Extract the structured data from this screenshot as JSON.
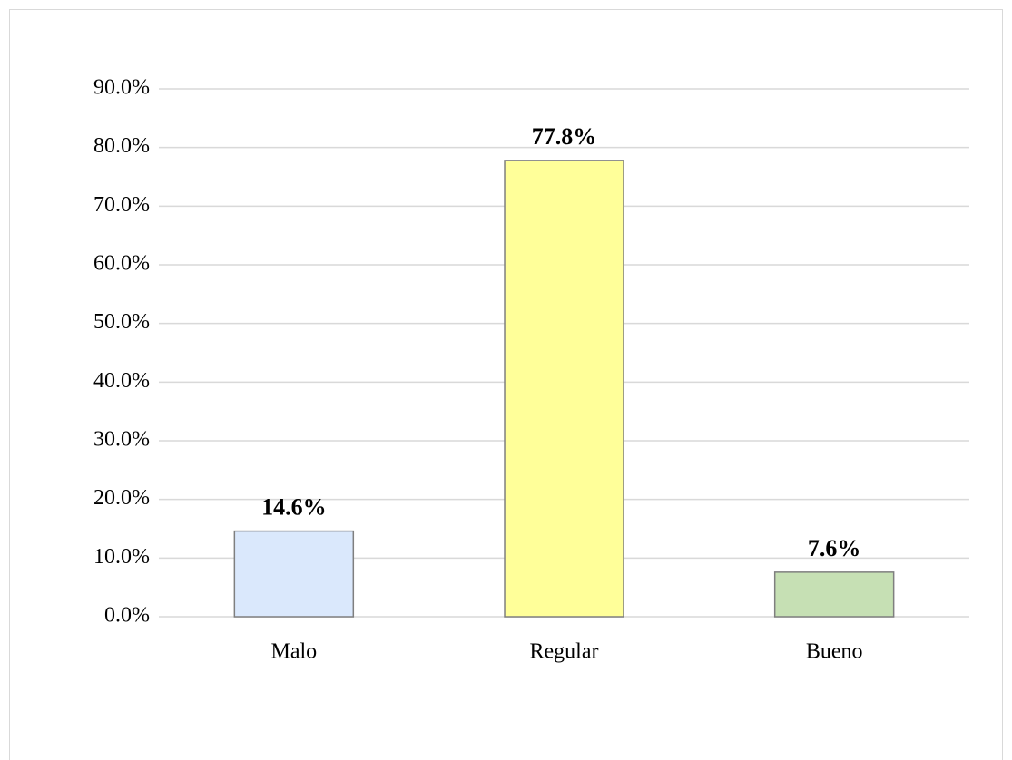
{
  "chart_data": {
    "type": "bar",
    "categories": [
      "Malo",
      "Regular",
      "Bueno"
    ],
    "values": [
      14.6,
      77.8,
      7.6
    ],
    "value_labels": [
      "14.6%",
      "77.8%",
      "7.6%"
    ],
    "colors": [
      "#dae8fc",
      "#ffff99",
      "#c6e0b4"
    ],
    "ylim": [
      0,
      90
    ],
    "yticks": [
      {
        "value": 0,
        "label": "0.0%"
      },
      {
        "value": 10,
        "label": "10.0%"
      },
      {
        "value": 20,
        "label": "20.0%"
      },
      {
        "value": 30,
        "label": "30.0%"
      },
      {
        "value": 40,
        "label": "40.0%"
      },
      {
        "value": 50,
        "label": "50.0%"
      },
      {
        "value": 60,
        "label": "60.0%"
      },
      {
        "value": 70,
        "label": "70.0%"
      },
      {
        "value": 80,
        "label": "80.0%"
      },
      {
        "value": 90,
        "label": "90.0%"
      }
    ],
    "grid": true
  }
}
